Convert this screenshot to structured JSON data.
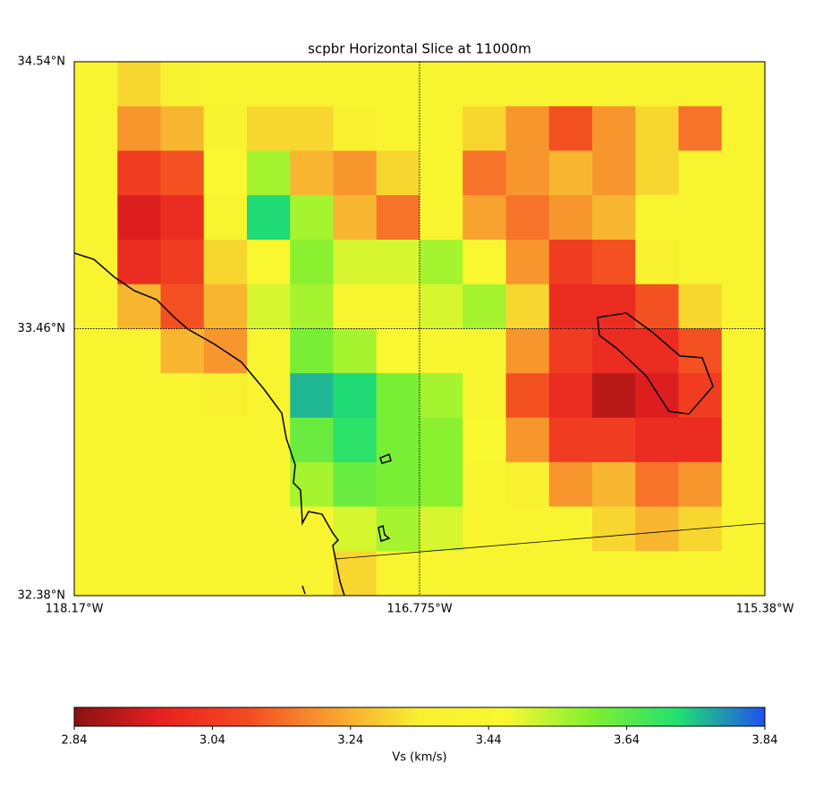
{
  "chart_data": {
    "type": "heatmap",
    "title": "scpbr Horizontal Slice at 11000m",
    "xlim": [
      -118.17,
      -115.38
    ],
    "ylim": [
      32.38,
      34.54
    ],
    "xticks": [
      {
        "value": -118.17,
        "label": "118.17°W"
      },
      {
        "value": -116.775,
        "label": "116.775°W"
      },
      {
        "value": -115.38,
        "label": "115.38°W"
      }
    ],
    "yticks": [
      {
        "value": 32.38,
        "label": "32.38°N"
      },
      {
        "value": 33.46,
        "label": "33.46°N"
      },
      {
        "value": 34.54,
        "label": "34.54°N"
      }
    ],
    "grid": true,
    "z": [
      [
        3.42,
        3.3,
        3.38,
        3.42,
        3.42,
        3.42,
        3.42,
        3.42,
        3.42,
        3.42,
        3.42,
        3.42,
        3.42,
        3.42,
        3.42,
        3.42
      ],
      [
        3.42,
        3.2,
        3.25,
        3.38,
        3.3,
        3.3,
        3.35,
        3.42,
        3.42,
        3.3,
        3.2,
        3.1,
        3.2,
        3.3,
        3.15,
        3.42
      ],
      [
        3.42,
        3.05,
        3.1,
        3.45,
        3.55,
        3.25,
        3.2,
        3.3,
        3.42,
        3.15,
        3.2,
        3.25,
        3.2,
        3.3,
        3.42,
        3.42
      ],
      [
        3.42,
        2.95,
        3.0,
        3.4,
        3.72,
        3.55,
        3.25,
        3.15,
        3.42,
        3.22,
        3.15,
        3.2,
        3.25,
        3.42,
        3.42,
        3.42
      ],
      [
        3.42,
        3.0,
        3.05,
        3.3,
        3.45,
        3.58,
        3.5,
        3.5,
        3.55,
        3.45,
        3.2,
        3.05,
        3.1,
        3.35,
        3.42,
        3.42
      ],
      [
        3.42,
        3.25,
        3.1,
        3.25,
        3.5,
        3.55,
        3.42,
        3.42,
        3.5,
        3.55,
        3.3,
        3.0,
        3.0,
        3.1,
        3.3,
        3.42
      ],
      [
        3.42,
        3.42,
        3.25,
        3.2,
        3.42,
        3.6,
        3.55,
        3.45,
        3.42,
        3.42,
        3.2,
        3.05,
        3.0,
        3.0,
        3.1,
        3.42
      ],
      [
        3.42,
        3.42,
        3.42,
        3.35,
        3.42,
        3.75,
        3.72,
        3.6,
        3.55,
        3.42,
        3.1,
        3.0,
        2.9,
        2.95,
        3.05,
        3.42
      ],
      [
        3.42,
        3.42,
        3.42,
        3.42,
        3.42,
        3.62,
        3.7,
        3.6,
        3.58,
        3.45,
        3.2,
        3.05,
        3.05,
        3.0,
        3.0,
        3.42
      ],
      [
        3.42,
        3.42,
        3.42,
        3.42,
        3.42,
        3.55,
        3.62,
        3.6,
        3.58,
        3.42,
        3.35,
        3.2,
        3.25,
        3.15,
        3.2,
        3.42
      ],
      [
        3.42,
        3.42,
        3.42,
        3.42,
        3.42,
        3.42,
        3.5,
        3.55,
        3.5,
        3.42,
        3.42,
        3.42,
        3.3,
        3.25,
        3.3,
        3.42
      ],
      [
        3.42,
        3.42,
        3.42,
        3.42,
        3.42,
        3.42,
        3.3,
        3.42,
        3.42,
        3.42,
        3.42,
        3.42,
        3.42,
        3.42,
        3.42,
        3.42
      ]
    ],
    "colorbar": {
      "label": "Vs (km/s)",
      "lim": [
        2.84,
        3.84
      ],
      "ticks": [
        2.84,
        3.04,
        3.24,
        3.44,
        3.64,
        3.84
      ],
      "colors": [
        "#8b1111",
        "#e82020",
        "#f44a22",
        "#f8a030",
        "#f8f030",
        "#f8f830",
        "#80f030",
        "#20e070",
        "#2050f0"
      ]
    }
  }
}
